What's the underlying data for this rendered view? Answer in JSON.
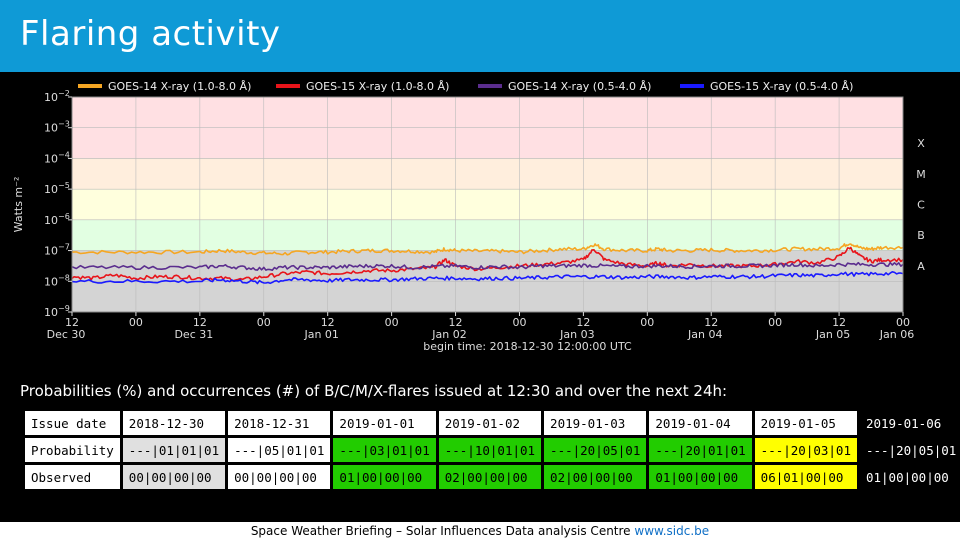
{
  "slide": {
    "title": "Flaring activity",
    "caption": "Probabilities (%) and occurrences (#) of B/C/M/X-flares issued at 12:30 and over the next 24h:",
    "footer_text": "Space Weather Briefing – Solar Influences Data analysis Centre",
    "footer_link": "www.sidc.be"
  },
  "chart_data": {
    "type": "line",
    "title": "",
    "xlabel": "begin time: 2018-12-30 12:00:00 UTC",
    "ylabel": "Watts m⁻²",
    "log_y": true,
    "ylim": [
      1e-09,
      0.01
    ],
    "xlim_hours": [
      0,
      156
    ],
    "y_ticks": [
      {
        "exp": -2,
        "label": "10",
        "sup": "−2"
      },
      {
        "exp": -3,
        "label": "10",
        "sup": "−3"
      },
      {
        "exp": -4,
        "label": "10",
        "sup": "−4"
      },
      {
        "exp": -5,
        "label": "10",
        "sup": "−5"
      },
      {
        "exp": -6,
        "label": "10",
        "sup": "−6"
      },
      {
        "exp": -7,
        "label": "10",
        "sup": "−7"
      },
      {
        "exp": -8,
        "label": "10",
        "sup": "−8"
      },
      {
        "exp": -9,
        "label": "10",
        "sup": "−9"
      }
    ],
    "x_ticks": [
      {
        "h": 0,
        "label": "12",
        "date": "Dec 30"
      },
      {
        "h": 12,
        "label": "00",
        "date": ""
      },
      {
        "h": 24,
        "label": "12",
        "date": "Dec 31"
      },
      {
        "h": 36,
        "label": "00",
        "date": ""
      },
      {
        "h": 48,
        "label": "12",
        "date": "Jan 01"
      },
      {
        "h": 60,
        "label": "00",
        "date": ""
      },
      {
        "h": 72,
        "label": "12",
        "date": "Jan 02"
      },
      {
        "h": 84,
        "label": "00",
        "date": ""
      },
      {
        "h": 96,
        "label": "12",
        "date": "Jan 03"
      },
      {
        "h": 108,
        "label": "00",
        "date": ""
      },
      {
        "h": 120,
        "label": "12",
        "date": "Jan 04"
      },
      {
        "h": 132,
        "label": "00",
        "date": ""
      },
      {
        "h": 144,
        "label": "12",
        "date": "Jan 05"
      },
      {
        "h": 156,
        "label": "00",
        "date": "Jan 06"
      }
    ],
    "flare_classes": [
      {
        "label": "X",
        "from": -4,
        "to": -2,
        "color": "#ffe0e3"
      },
      {
        "label": "M",
        "from": -5,
        "to": -4,
        "color": "#ffeedd"
      },
      {
        "label": "C",
        "from": -6,
        "to": -5,
        "color": "#ffffdd"
      },
      {
        "label": "B",
        "from": -7,
        "to": -6,
        "color": "#e2ffe2"
      },
      {
        "label": "A",
        "from": -9,
        "to": -7,
        "color": "#d4d4d4"
      }
    ],
    "series": [
      {
        "name": "GOES-14 X-ray (1.0-8.0 Å)",
        "color": "#f5a623",
        "points": [
          [
            0,
            -7.05
          ],
          [
            8,
            -7.05
          ],
          [
            16,
            -7.05
          ],
          [
            24,
            -7.05
          ],
          [
            28,
            -7.0
          ],
          [
            32,
            -7.05
          ],
          [
            36,
            -7.08
          ],
          [
            40,
            -7.1
          ],
          [
            44,
            -7.05
          ],
          [
            48,
            -7.05
          ],
          [
            52,
            -7.02
          ],
          [
            56,
            -7.0
          ],
          [
            60,
            -7.0
          ],
          [
            64,
            -7.02
          ],
          [
            68,
            -7.05
          ],
          [
            70,
            -6.95
          ],
          [
            72,
            -7.0
          ],
          [
            76,
            -7.02
          ],
          [
            80,
            -7.02
          ],
          [
            84,
            -7.05
          ],
          [
            88,
            -7.0
          ],
          [
            92,
            -6.95
          ],
          [
            96,
            -6.95
          ],
          [
            98,
            -6.8
          ],
          [
            100,
            -6.95
          ],
          [
            104,
            -7.0
          ],
          [
            108,
            -7.0
          ],
          [
            110,
            -6.95
          ],
          [
            112,
            -7.0
          ],
          [
            116,
            -7.0
          ],
          [
            120,
            -6.98
          ],
          [
            124,
            -7.0
          ],
          [
            128,
            -7.0
          ],
          [
            132,
            -6.98
          ],
          [
            136,
            -6.95
          ],
          [
            140,
            -6.95
          ],
          [
            144,
            -6.92
          ],
          [
            146,
            -6.75
          ],
          [
            148,
            -6.92
          ],
          [
            150,
            -6.95
          ],
          [
            152,
            -6.9
          ],
          [
            156,
            -6.9
          ]
        ]
      },
      {
        "name": "GOES-15 X-ray (1.0-8.0 Å)",
        "color": "#e8141a",
        "points": [
          [
            0,
            -7.85
          ],
          [
            4,
            -7.9
          ],
          [
            8,
            -7.8
          ],
          [
            12,
            -7.9
          ],
          [
            16,
            -7.85
          ],
          [
            20,
            -7.85
          ],
          [
            24,
            -7.9
          ],
          [
            28,
            -7.9
          ],
          [
            32,
            -7.95
          ],
          [
            36,
            -7.85
          ],
          [
            40,
            -7.75
          ],
          [
            44,
            -7.7
          ],
          [
            48,
            -7.75
          ],
          [
            52,
            -7.7
          ],
          [
            56,
            -7.65
          ],
          [
            60,
            -7.65
          ],
          [
            64,
            -7.6
          ],
          [
            68,
            -7.55
          ],
          [
            70,
            -7.3
          ],
          [
            72,
            -7.5
          ],
          [
            76,
            -7.6
          ],
          [
            80,
            -7.55
          ],
          [
            84,
            -7.5
          ],
          [
            88,
            -7.45
          ],
          [
            92,
            -7.4
          ],
          [
            96,
            -7.3
          ],
          [
            98,
            -6.95
          ],
          [
            100,
            -7.3
          ],
          [
            104,
            -7.45
          ],
          [
            108,
            -7.5
          ],
          [
            110,
            -7.4
          ],
          [
            112,
            -7.5
          ],
          [
            116,
            -7.45
          ],
          [
            120,
            -7.5
          ],
          [
            124,
            -7.5
          ],
          [
            128,
            -7.5
          ],
          [
            132,
            -7.45
          ],
          [
            136,
            -7.35
          ],
          [
            140,
            -7.4
          ],
          [
            144,
            -7.2
          ],
          [
            146,
            -6.9
          ],
          [
            148,
            -7.2
          ],
          [
            150,
            -7.35
          ],
          [
            152,
            -7.3
          ],
          [
            156,
            -7.3
          ]
        ]
      },
      {
        "name": "GOES-14 X-ray (0.5-4.0 Å)",
        "color": "#5b2d8e",
        "points": [
          [
            0,
            -7.55
          ],
          [
            8,
            -7.55
          ],
          [
            16,
            -7.55
          ],
          [
            24,
            -7.55
          ],
          [
            28,
            -7.5
          ],
          [
            32,
            -7.55
          ],
          [
            36,
            -7.6
          ],
          [
            40,
            -7.55
          ],
          [
            44,
            -7.55
          ],
          [
            48,
            -7.55
          ],
          [
            52,
            -7.52
          ],
          [
            56,
            -7.5
          ],
          [
            60,
            -7.5
          ],
          [
            64,
            -7.55
          ],
          [
            68,
            -7.52
          ],
          [
            72,
            -7.5
          ],
          [
            76,
            -7.55
          ],
          [
            80,
            -7.52
          ],
          [
            84,
            -7.55
          ],
          [
            88,
            -7.5
          ],
          [
            92,
            -7.5
          ],
          [
            96,
            -7.48
          ],
          [
            100,
            -7.5
          ],
          [
            104,
            -7.52
          ],
          [
            108,
            -7.5
          ],
          [
            112,
            -7.5
          ],
          [
            116,
            -7.52
          ],
          [
            120,
            -7.5
          ],
          [
            124,
            -7.5
          ],
          [
            128,
            -7.5
          ],
          [
            132,
            -7.48
          ],
          [
            136,
            -7.45
          ],
          [
            140,
            -7.5
          ],
          [
            144,
            -7.45
          ],
          [
            148,
            -7.45
          ],
          [
            152,
            -7.45
          ],
          [
            156,
            -7.45
          ]
        ]
      },
      {
        "name": "GOES-15 X-ray (0.5-4.0 Å)",
        "color": "#1a1aff",
        "points": [
          [
            0,
            -8.0
          ],
          [
            8,
            -8.0
          ],
          [
            16,
            -8.0
          ],
          [
            24,
            -8.0
          ],
          [
            28,
            -7.95
          ],
          [
            32,
            -8.0
          ],
          [
            36,
            -8.05
          ],
          [
            40,
            -7.95
          ],
          [
            44,
            -7.95
          ],
          [
            48,
            -7.98
          ],
          [
            52,
            -7.95
          ],
          [
            56,
            -7.95
          ],
          [
            60,
            -7.95
          ],
          [
            64,
            -7.92
          ],
          [
            68,
            -7.9
          ],
          [
            72,
            -7.9
          ],
          [
            76,
            -7.92
          ],
          [
            80,
            -7.9
          ],
          [
            84,
            -7.9
          ],
          [
            88,
            -7.88
          ],
          [
            92,
            -7.85
          ],
          [
            96,
            -7.85
          ],
          [
            100,
            -7.85
          ],
          [
            104,
            -7.88
          ],
          [
            108,
            -7.85
          ],
          [
            112,
            -7.85
          ],
          [
            116,
            -7.88
          ],
          [
            120,
            -7.85
          ],
          [
            124,
            -7.85
          ],
          [
            128,
            -7.85
          ],
          [
            132,
            -7.82
          ],
          [
            136,
            -7.8
          ],
          [
            140,
            -7.82
          ],
          [
            144,
            -7.75
          ],
          [
            148,
            -7.78
          ],
          [
            152,
            -7.75
          ],
          [
            156,
            -7.75
          ]
        ]
      }
    ]
  },
  "table": {
    "rows": [
      {
        "head": "Issue date",
        "cells": [
          {
            "text": "2018-12-30",
            "bg": "white"
          },
          {
            "text": "2018-12-31",
            "bg": "white"
          },
          {
            "text": "2019-01-01",
            "bg": "white"
          },
          {
            "text": "2019-01-02",
            "bg": "white"
          },
          {
            "text": "2019-01-03",
            "bg": "white"
          },
          {
            "text": "2019-01-04",
            "bg": "white"
          },
          {
            "text": "2019-01-05",
            "bg": "white"
          },
          {
            "text": "2019-01-06",
            "bg": "black"
          }
        ]
      },
      {
        "head": "Probability",
        "cells": [
          {
            "text": "---|01|01|01",
            "bg": "grey"
          },
          {
            "text": "---|05|01|01",
            "bg": "white"
          },
          {
            "text": "---|03|01|01",
            "bg": "green"
          },
          {
            "text": "---|10|01|01",
            "bg": "green"
          },
          {
            "text": "---|20|05|01",
            "bg": "green"
          },
          {
            "text": "---|20|01|01",
            "bg": "green"
          },
          {
            "text": "---|20|03|01",
            "bg": "yellow"
          },
          {
            "text": "---|20|05|01",
            "bg": "black"
          }
        ]
      },
      {
        "head": "Observed",
        "cells": [
          {
            "text": "00|00|00|00",
            "bg": "grey"
          },
          {
            "text": "00|00|00|00",
            "bg": "white"
          },
          {
            "text": "01|00|00|00",
            "bg": "green"
          },
          {
            "text": "02|00|00|00",
            "bg": "green"
          },
          {
            "text": "02|00|00|00",
            "bg": "green"
          },
          {
            "text": "01|00|00|00",
            "bg": "green"
          },
          {
            "text": "06|01|00|00",
            "bg": "yellow"
          },
          {
            "text": "01|00|00|00",
            "bg": "black"
          }
        ]
      }
    ]
  }
}
